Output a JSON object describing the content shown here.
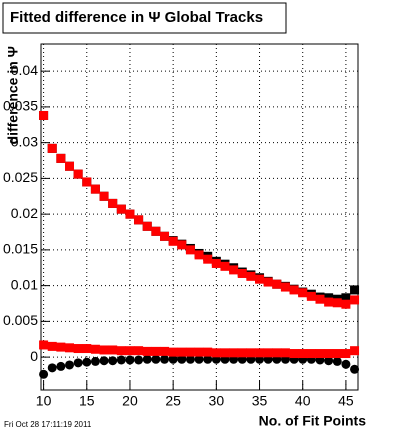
{
  "chart_data": {
    "type": "scatter",
    "title": "Fitted difference in  Ψ   Global Tracks",
    "y_label": "difference in Ψ",
    "x_label": "No. of Fit Points",
    "footnote": "Fri Oct 28 17:11:19 2011",
    "x": [
      10,
      11,
      12,
      13,
      14,
      15,
      16,
      17,
      18,
      19,
      20,
      21,
      22,
      23,
      24,
      25,
      26,
      27,
      28,
      29,
      30,
      31,
      32,
      33,
      34,
      35,
      36,
      37,
      38,
      39,
      40,
      41,
      42,
      43,
      44,
      45,
      46
    ],
    "series": [
      {
        "color": "#000000",
        "marker": "square",
        "values": [
          0.0338,
          0.0292,
          0.0278,
          0.0267,
          0.0256,
          0.0245,
          0.0235,
          0.0225,
          0.0215,
          0.0207,
          0.02,
          0.0192,
          0.0183,
          0.0176,
          0.0169,
          0.0163,
          0.0158,
          0.0152,
          0.0145,
          0.0141,
          0.0134,
          0.013,
          0.0125,
          0.0119,
          0.0115,
          0.0111,
          0.0106,
          0.0102,
          0.0099,
          0.0095,
          0.0091,
          0.0088,
          0.0084,
          0.0083,
          0.0081,
          0.0083,
          0.0094
        ]
      },
      {
        "color": "#ff0000",
        "marker": "square",
        "values": [
          0.0338,
          0.0292,
          0.0278,
          0.0267,
          0.0256,
          0.0245,
          0.0235,
          0.0225,
          0.0215,
          0.0207,
          0.02,
          0.0192,
          0.0183,
          0.0176,
          0.0169,
          0.0162,
          0.0157,
          0.015,
          0.0143,
          0.0137,
          0.0131,
          0.0127,
          0.0122,
          0.0117,
          0.0113,
          0.0109,
          0.0105,
          0.0102,
          0.0098,
          0.0094,
          0.009,
          0.0085,
          0.0081,
          0.0077,
          0.0076,
          0.0074,
          0.008
        ]
      },
      {
        "color": "#000000",
        "marker": "circle",
        "values": [
          -0.0024,
          -0.0015,
          -0.0013,
          -0.0011,
          -0.0008,
          -0.0007,
          -0.0006,
          -0.0005,
          -0.0005,
          -0.0004,
          -0.0004,
          -0.0004,
          -0.0003,
          -0.0003,
          -0.0003,
          -0.0003,
          -0.0003,
          -0.0003,
          -0.0003,
          -0.0003,
          -0.0003,
          -0.0003,
          -0.0003,
          -0.0003,
          -0.0003,
          -0.0003,
          -0.0003,
          -0.0003,
          -0.0003,
          -0.0003,
          -0.0003,
          -0.0003,
          -0.0004,
          -0.0005,
          -0.0006,
          -0.001,
          -0.0017
        ]
      },
      {
        "color": "#ff0000",
        "marker": "square",
        "values": [
          0.0017,
          0.0015,
          0.0014,
          0.0013,
          0.0012,
          0.0012,
          0.0011,
          0.001,
          0.001,
          0.0009,
          0.0009,
          0.0009,
          0.0008,
          0.0008,
          0.0008,
          0.0007,
          0.0007,
          0.0007,
          0.0007,
          0.0007,
          0.0006,
          0.0006,
          0.0006,
          0.0006,
          0.0006,
          0.0006,
          0.0006,
          0.0006,
          0.0006,
          0.0005,
          0.0005,
          0.0005,
          0.0005,
          0.0005,
          0.0005,
          0.0005,
          0.0009
        ]
      }
    ],
    "xlim": [
      9.7,
      46.4
    ],
    "xticks": [
      10,
      15,
      20,
      25,
      30,
      35,
      40,
      45
    ],
    "ylim": [
      -0.0046,
      0.0438
    ],
    "yticks": [
      0,
      0.005,
      0.01,
      0.015,
      0.02,
      0.025,
      0.03,
      0.035,
      0.04
    ],
    "grid": true
  }
}
